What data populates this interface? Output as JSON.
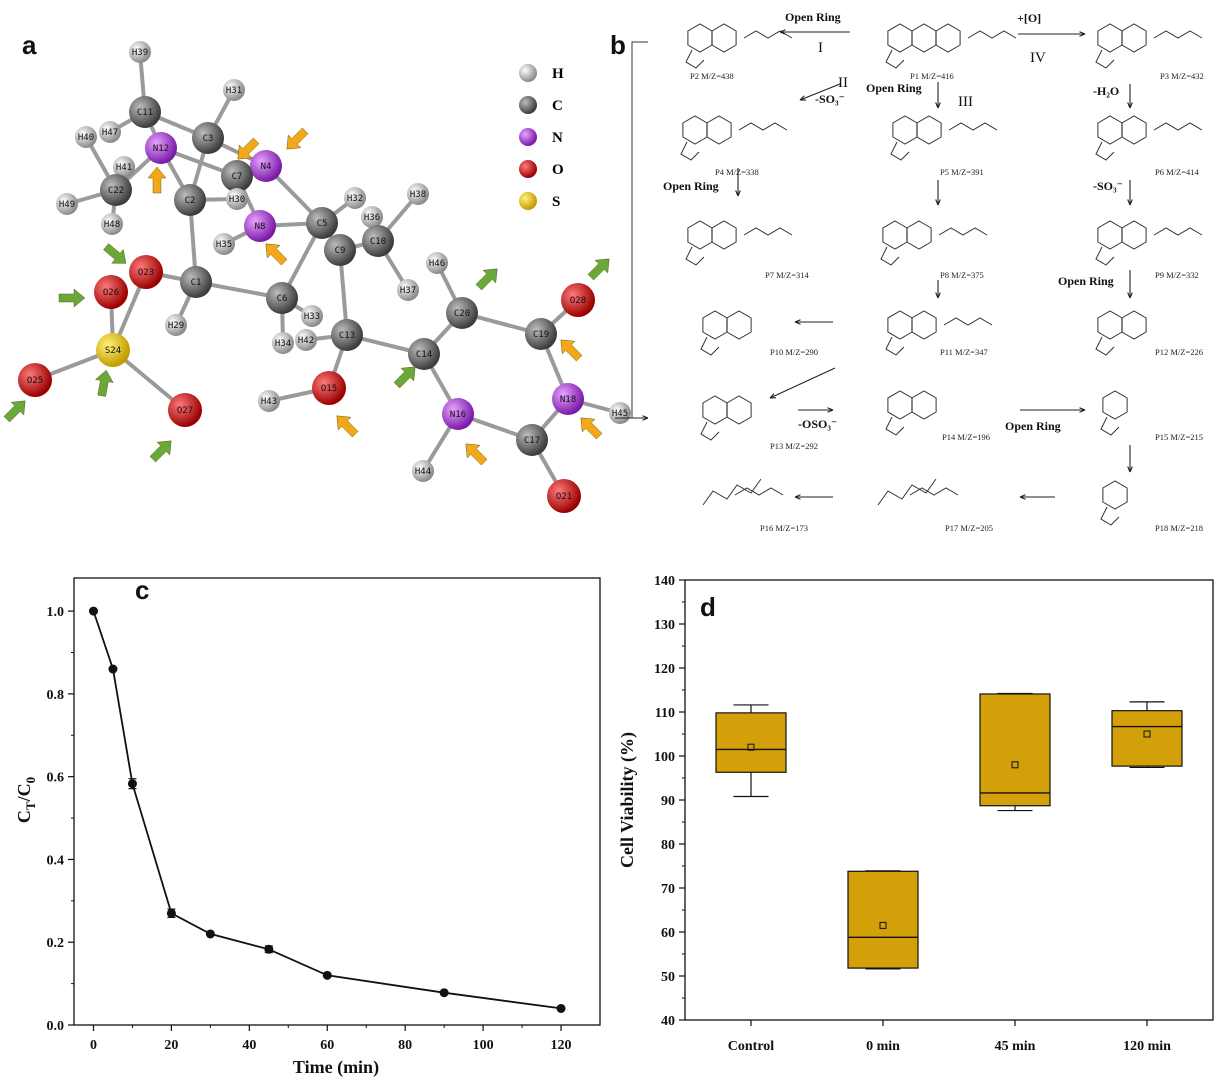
{
  "panels": {
    "a": "a",
    "b": "b",
    "c": "c",
    "d": "d"
  },
  "molecule": {
    "atoms": [
      {
        "id": "H39",
        "el": "H"
      },
      {
        "id": "H31",
        "el": "H"
      },
      {
        "id": "C11",
        "el": "C"
      },
      {
        "id": "C3",
        "el": "C"
      },
      {
        "id": "H47",
        "el": "H"
      },
      {
        "id": "H40",
        "el": "H"
      },
      {
        "id": "N12",
        "el": "N"
      },
      {
        "id": "N4",
        "el": "N"
      },
      {
        "id": "C7",
        "el": "C"
      },
      {
        "id": "H41",
        "el": "H"
      },
      {
        "id": "C22",
        "el": "C"
      },
      {
        "id": "C2",
        "el": "C"
      },
      {
        "id": "H30",
        "el": "H"
      },
      {
        "id": "H49",
        "el": "H"
      },
      {
        "id": "H48",
        "el": "H"
      },
      {
        "id": "N8",
        "el": "N"
      },
      {
        "id": "H35",
        "el": "H"
      },
      {
        "id": "C5",
        "el": "C"
      },
      {
        "id": "H32",
        "el": "H"
      },
      {
        "id": "H36",
        "el": "H"
      },
      {
        "id": "H38",
        "el": "H"
      },
      {
        "id": "C9",
        "el": "C"
      },
      {
        "id": "C10",
        "el": "C"
      },
      {
        "id": "O23",
        "el": "O"
      },
      {
        "id": "O26",
        "el": "O"
      },
      {
        "id": "C1",
        "el": "C"
      },
      {
        "id": "C6",
        "el": "C"
      },
      {
        "id": "H37",
        "el": "H"
      },
      {
        "id": "H46",
        "el": "H"
      },
      {
        "id": "C20",
        "el": "C"
      },
      {
        "id": "O28",
        "el": "O"
      },
      {
        "id": "S24",
        "el": "S"
      },
      {
        "id": "H29",
        "el": "H"
      },
      {
        "id": "H33",
        "el": "H"
      },
      {
        "id": "H34",
        "el": "H"
      },
      {
        "id": "H42",
        "el": "H"
      },
      {
        "id": "C13",
        "el": "C"
      },
      {
        "id": "C19",
        "el": "C"
      },
      {
        "id": "C14",
        "el": "C"
      },
      {
        "id": "O25",
        "el": "O"
      },
      {
        "id": "O27",
        "el": "O"
      },
      {
        "id": "H43",
        "el": "H"
      },
      {
        "id": "O15",
        "el": "O"
      },
      {
        "id": "N18",
        "el": "N"
      },
      {
        "id": "H45",
        "el": "H"
      },
      {
        "id": "N16",
        "el": "N"
      },
      {
        "id": "C17",
        "el": "C"
      },
      {
        "id": "H44",
        "el": "H"
      },
      {
        "id": "O21",
        "el": "O"
      }
    ],
    "legend": [
      {
        "symbol": "H",
        "color": "#c8c8c8"
      },
      {
        "symbol": "C",
        "color": "#6e6e6e"
      },
      {
        "symbol": "N",
        "color": "#a52fd6"
      },
      {
        "symbol": "O",
        "color": "#d81010"
      },
      {
        "symbol": "S",
        "color": "#f2c21a"
      }
    ]
  },
  "pathway": {
    "products": [
      {
        "id": "P1",
        "label": "P1 M/Z=416"
      },
      {
        "id": "P2",
        "label": "P2 M/Z=438"
      },
      {
        "id": "P3",
        "label": "P3 M/Z=432"
      },
      {
        "id": "P4",
        "label": "P4 M/Z=338"
      },
      {
        "id": "P5",
        "label": "P5 M/Z=391"
      },
      {
        "id": "P6",
        "label": "P6 M/Z=414"
      },
      {
        "id": "P7",
        "label": "P7 M/Z=314"
      },
      {
        "id": "P8",
        "label": "P8 M/Z=375"
      },
      {
        "id": "P9",
        "label": "P9 M/Z=332"
      },
      {
        "id": "P10",
        "label": "P10 M/Z=290"
      },
      {
        "id": "P11",
        "label": "P11 M/Z=347"
      },
      {
        "id": "P12",
        "label": "P12 M/Z=226"
      },
      {
        "id": "P13",
        "label": "P13 M/Z=292"
      },
      {
        "id": "P14",
        "label": "P14 M/Z=196"
      },
      {
        "id": "P15",
        "label": "P15 M/Z=215"
      },
      {
        "id": "P16",
        "label": "P16 M/Z=173"
      },
      {
        "id": "P17",
        "label": "P17 M/Z=205"
      },
      {
        "id": "P18",
        "label": "P18 M/Z=218"
      }
    ],
    "steps": {
      "open_ring": "Open Ring",
      "oxidation": "+[O]",
      "dehydration": "-H₂O",
      "desulfonation": "-SO₃⁻",
      "loss_oso3": "-OSO₃⁻"
    },
    "routes": [
      "I",
      "II",
      "III",
      "IV"
    ]
  },
  "chart_data": [
    {
      "type": "line",
      "panel": "c",
      "title": "",
      "xlabel": "Time (min)",
      "ylabel": "C_T/C_0",
      "ylabel_main": "C",
      "ylabel_sub1": "T",
      "ylabel_mid": "/C",
      "ylabel_sub2": "0",
      "xlim": [
        -5,
        130
      ],
      "ylim": [
        0,
        1.08
      ],
      "xticks": [
        0,
        20,
        40,
        60,
        80,
        100,
        120
      ],
      "yticks": [
        0.0,
        0.2,
        0.4,
        0.6,
        0.8,
        1.0
      ],
      "ytick_labels": [
        "0.0",
        "0.2",
        "0.4",
        "0.6",
        "0.8",
        "1.0"
      ],
      "x": [
        0,
        5,
        10,
        20,
        30,
        45,
        60,
        90,
        120
      ],
      "y": [
        1.0,
        0.86,
        0.583,
        0.27,
        0.22,
        0.183,
        0.12,
        0.078,
        0.04
      ],
      "err": [
        0.0,
        0.0,
        0.012,
        0.01,
        0.0,
        0.008,
        0.0,
        0.0,
        0.0
      ]
    },
    {
      "type": "box",
      "panel": "d",
      "title": "",
      "xlabel": "",
      "ylabel": "Cell Viability (%)",
      "ylim": [
        40,
        140
      ],
      "yticks": [
        40,
        50,
        60,
        70,
        80,
        90,
        100,
        110,
        120,
        130,
        140
      ],
      "categories": [
        "Control",
        "0 min",
        "45 min",
        "120 min"
      ],
      "box_color": "#d4a00a",
      "boxes": [
        {
          "whisker_low": 90.8,
          "q1": 96.3,
          "median": 101.5,
          "q3": 109.8,
          "whisker_high": 111.6,
          "mean": 102.0
        },
        {
          "whisker_low": 51.6,
          "q1": 51.8,
          "median": 58.8,
          "q3": 73.8,
          "whisker_high": 73.9,
          "mean": 61.5
        },
        {
          "whisker_low": 87.6,
          "q1": 88.7,
          "median": 91.6,
          "q3": 114.1,
          "whisker_high": 114.2,
          "mean": 98.0
        },
        {
          "whisker_low": 97.4,
          "q1": 97.7,
          "median": 106.7,
          "q3": 110.3,
          "whisker_high": 112.3,
          "mean": 105.0
        }
      ]
    }
  ]
}
